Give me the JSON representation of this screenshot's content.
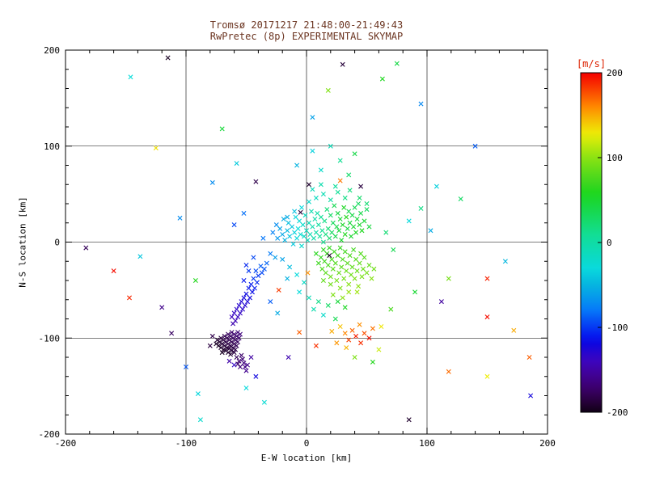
{
  "chart_data": {
    "type": "scatter",
    "title_line1": "Tromsø 20171217 21:48:00-21:49:43",
    "title_line2": "RwPretec (8p) EXPERIMENTAL SKYMAP",
    "xlabel": "E-W location [km]",
    "ylabel": "N-S location [km]",
    "xlim": [
      -200,
      200
    ],
    "ylim": [
      -200,
      200
    ],
    "xticks": [
      -200,
      -100,
      0,
      100,
      200
    ],
    "yticks": [
      -200,
      -100,
      0,
      100,
      200
    ],
    "minor_tick_step": 20,
    "grid": true,
    "marker": "x",
    "title_color": "#6b3420",
    "axis_color": "#000000",
    "colorbar": {
      "label": "[m/s]",
      "label_color": "#dd2200",
      "min": -200,
      "max": 200,
      "ticks": [
        200,
        100,
        0,
        -100,
        -200
      ]
    },
    "colormap": [
      [
        -200,
        285,
        100,
        4
      ],
      [
        -170,
        272,
        100,
        22
      ],
      [
        -140,
        258,
        95,
        38
      ],
      [
        -110,
        235,
        95,
        48
      ],
      [
        -80,
        212,
        95,
        50
      ],
      [
        -50,
        192,
        95,
        45
      ],
      [
        -20,
        175,
        90,
        45
      ],
      [
        10,
        158,
        85,
        47
      ],
      [
        40,
        135,
        80,
        47
      ],
      [
        70,
        110,
        75,
        48
      ],
      [
        100,
        85,
        85,
        48
      ],
      [
        130,
        58,
        95,
        48
      ],
      [
        160,
        32,
        100,
        50
      ],
      [
        200,
        0,
        100,
        48
      ]
    ],
    "points": [
      [
        -28,
        10,
        -75
      ],
      [
        -25,
        18,
        -70
      ],
      [
        -24,
        4,
        -65
      ],
      [
        -22,
        14,
        -60
      ],
      [
        -20,
        8,
        -58
      ],
      [
        -19,
        24,
        -55
      ],
      [
        -18,
        2,
        -52
      ],
      [
        -16,
        12,
        -48
      ],
      [
        -15,
        20,
        -45
      ],
      [
        -14,
        6,
        -42
      ],
      [
        -12,
        16,
        -40
      ],
      [
        -11,
        -2,
        -38
      ],
      [
        -10,
        10,
        -35
      ],
      [
        -9,
        26,
        -32
      ],
      [
        -8,
        4,
        -30
      ],
      [
        -7,
        14,
        -28
      ],
      [
        -6,
        22,
        -26
      ],
      [
        -5,
        8,
        -24
      ],
      [
        -4,
        -4,
        -22
      ],
      [
        -3,
        18,
        -20
      ],
      [
        -2,
        6,
        -18
      ],
      [
        -1,
        28,
        -16
      ],
      [
        0,
        12,
        -14
      ],
      [
        1,
        2,
        -12
      ],
      [
        2,
        20,
        -10
      ],
      [
        3,
        8,
        -8
      ],
      [
        4,
        32,
        -6
      ],
      [
        5,
        16,
        -5
      ],
      [
        6,
        4,
        -4
      ],
      [
        7,
        24,
        -3
      ],
      [
        8,
        10,
        -2
      ],
      [
        9,
        30,
        -1
      ],
      [
        10,
        18,
        2
      ],
      [
        11,
        6,
        5
      ],
      [
        12,
        26,
        8
      ],
      [
        13,
        12,
        10
      ],
      [
        14,
        0,
        12
      ],
      [
        15,
        22,
        15
      ],
      [
        16,
        8,
        18
      ],
      [
        17,
        34,
        20
      ],
      [
        18,
        14,
        22
      ],
      [
        19,
        4,
        25
      ],
      [
        20,
        28,
        28
      ],
      [
        21,
        10,
        30
      ],
      [
        22,
        20,
        32
      ],
      [
        23,
        38,
        35
      ],
      [
        24,
        6,
        38
      ],
      [
        25,
        16,
        40
      ],
      [
        26,
        30,
        42
      ],
      [
        27,
        12,
        45
      ],
      [
        28,
        24,
        48
      ],
      [
        29,
        2,
        50
      ],
      [
        30,
        18,
        52
      ],
      [
        31,
        36,
        55
      ],
      [
        32,
        8,
        58
      ],
      [
        33,
        26,
        60
      ],
      [
        34,
        14,
        42
      ],
      [
        35,
        32,
        38
      ],
      [
        36,
        20,
        45
      ],
      [
        37,
        6,
        50
      ],
      [
        38,
        28,
        40
      ],
      [
        39,
        16,
        48
      ],
      [
        40,
        36,
        35
      ],
      [
        41,
        10,
        55
      ],
      [
        42,
        24,
        45
      ],
      [
        43,
        40,
        30
      ],
      [
        44,
        18,
        50
      ],
      [
        45,
        30,
        40
      ],
      [
        46,
        12,
        58
      ],
      [
        48,
        22,
        48
      ],
      [
        50,
        34,
        30
      ],
      [
        52,
        16,
        44
      ],
      [
        8,
        -12,
        62
      ],
      [
        10,
        -22,
        70
      ],
      [
        12,
        -16,
        66
      ],
      [
        13,
        -28,
        78
      ],
      [
        14,
        -8,
        64
      ],
      [
        15,
        -20,
        72
      ],
      [
        16,
        -32,
        82
      ],
      [
        17,
        -12,
        68
      ],
      [
        18,
        -24,
        76
      ],
      [
        19,
        -6,
        66
      ],
      [
        20,
        -36,
        88
      ],
      [
        21,
        -18,
        74
      ],
      [
        22,
        -28,
        82
      ],
      [
        23,
        -10,
        70
      ],
      [
        24,
        -22,
        78
      ],
      [
        25,
        -40,
        92
      ],
      [
        26,
        -14,
        72
      ],
      [
        27,
        -32,
        86
      ],
      [
        28,
        -6,
        68
      ],
      [
        29,
        -26,
        82
      ],
      [
        30,
        -18,
        76
      ],
      [
        31,
        -38,
        92
      ],
      [
        32,
        -10,
        72
      ],
      [
        33,
        -30,
        88
      ],
      [
        34,
        -22,
        80
      ],
      [
        35,
        -44,
        98
      ],
      [
        36,
        -14,
        76
      ],
      [
        37,
        -34,
        90
      ],
      [
        38,
        -26,
        84
      ],
      [
        39,
        -8,
        72
      ],
      [
        40,
        -38,
        95
      ],
      [
        41,
        -18,
        80
      ],
      [
        42,
        -30,
        88
      ],
      [
        43,
        -46,
        102
      ],
      [
        44,
        -22,
        84
      ],
      [
        45,
        -12,
        78
      ],
      [
        46,
        -36,
        94
      ],
      [
        47,
        -28,
        88
      ],
      [
        48,
        -16,
        80
      ],
      [
        50,
        -32,
        92
      ],
      [
        52,
        -24,
        86
      ],
      [
        54,
        -38,
        98
      ],
      [
        56,
        -28,
        90
      ],
      [
        35,
        -52,
        104
      ],
      [
        28,
        -48,
        96
      ],
      [
        20,
        -44,
        90
      ],
      [
        14,
        -40,
        84
      ],
      [
        42,
        -52,
        106
      ],
      [
        30,
        -58,
        100
      ],
      [
        22,
        -55,
        95
      ],
      [
        -4,
        36,
        -30
      ],
      [
        2,
        42,
        -20
      ],
      [
        8,
        46,
        -15
      ],
      [
        14,
        50,
        -8
      ],
      [
        20,
        44,
        0
      ],
      [
        26,
        52,
        8
      ],
      [
        32,
        46,
        15
      ],
      [
        -10,
        32,
        -45
      ],
      [
        -16,
        26,
        -55
      ],
      [
        5,
        55,
        -12
      ],
      [
        12,
        60,
        -5
      ],
      [
        24,
        58,
        5
      ],
      [
        36,
        54,
        18
      ],
      [
        44,
        46,
        25
      ],
      [
        50,
        40,
        22
      ],
      [
        -20,
        -18,
        -60
      ],
      [
        -14,
        -26,
        -45
      ],
      [
        -8,
        -34,
        -30
      ],
      [
        -2,
        -42,
        -18
      ],
      [
        -16,
        -38,
        -52
      ],
      [
        -6,
        -52,
        -28
      ],
      [
        2,
        -58,
        -10
      ],
      [
        10,
        -62,
        15
      ],
      [
        18,
        -66,
        28
      ],
      [
        26,
        -62,
        45
      ],
      [
        6,
        -70,
        -5
      ],
      [
        32,
        -68,
        55
      ],
      [
        14,
        -76,
        -20
      ],
      [
        24,
        -80,
        35
      ],
      [
        -23,
        -50,
        182
      ],
      [
        1,
        -32,
        158
      ],
      [
        28,
        64,
        165
      ],
      [
        -6,
        -94,
        172
      ],
      [
        2,
        60,
        -192
      ],
      [
        45,
        58,
        -186
      ],
      [
        -42,
        63,
        -182
      ],
      [
        19,
        -14,
        -195
      ],
      [
        -5,
        31,
        -188
      ],
      [
        12,
        75,
        -20
      ],
      [
        28,
        85,
        10
      ],
      [
        5,
        95,
        -35
      ],
      [
        35,
        70,
        25
      ],
      [
        20,
        100,
        -10
      ],
      [
        -8,
        80,
        -50
      ],
      [
        40,
        92,
        40
      ],
      [
        66,
        10,
        22
      ],
      [
        72,
        -8,
        36
      ],
      [
        85,
        22,
        -30
      ],
      [
        95,
        35,
        15
      ],
      [
        108,
        58,
        -35
      ],
      [
        -33,
        -22,
        -85
      ],
      [
        -35,
        -28,
        -90
      ],
      [
        -37,
        -32,
        -95
      ],
      [
        -38,
        -25,
        -88
      ],
      [
        -40,
        -35,
        -100
      ],
      [
        -41,
        -42,
        -105
      ],
      [
        -42,
        -30,
        -95
      ],
      [
        -43,
        -48,
        -110
      ],
      [
        -44,
        -38,
        -100
      ],
      [
        -45,
        -52,
        -115
      ],
      [
        -46,
        -44,
        -108
      ],
      [
        -47,
        -58,
        -120
      ],
      [
        -48,
        -48,
        -112
      ],
      [
        -49,
        -62,
        -125
      ],
      [
        -50,
        -54,
        -118
      ],
      [
        -51,
        -66,
        -128
      ],
      [
        -52,
        -58,
        -122
      ],
      [
        -53,
        -70,
        -132
      ],
      [
        -54,
        -62,
        -126
      ],
      [
        -55,
        -74,
        -135
      ],
      [
        -56,
        -66,
        -130
      ],
      [
        -57,
        -78,
        -138
      ],
      [
        -58,
        -70,
        -133
      ],
      [
        -59,
        -82,
        -142
      ],
      [
        -60,
        -74,
        -136
      ],
      [
        -61,
        -85,
        -145
      ],
      [
        -62,
        -78,
        -140
      ],
      [
        -48,
        -30,
        -100
      ],
      [
        -52,
        -40,
        -110
      ],
      [
        -30,
        -12,
        -78
      ],
      [
        -26,
        -16,
        -62
      ],
      [
        -36,
        4,
        -80
      ],
      [
        -44,
        -16,
        -95
      ],
      [
        -50,
        -24,
        -105
      ],
      [
        -52,
        30,
        -82
      ],
      [
        -60,
        18,
        -95
      ],
      [
        -30,
        -62,
        -88
      ],
      [
        -24,
        -74,
        -55
      ],
      [
        -55,
        -96,
        -165
      ],
      [
        -56,
        -100,
        -170
      ],
      [
        -57,
        -94,
        -168
      ],
      [
        -57,
        -104,
        -175
      ],
      [
        -58,
        -98,
        -172
      ],
      [
        -58,
        -108,
        -178
      ],
      [
        -59,
        -102,
        -175
      ],
      [
        -59,
        -112,
        -182
      ],
      [
        -60,
        -96,
        -170
      ],
      [
        -60,
        -106,
        -180
      ],
      [
        -60,
        -115,
        -185
      ],
      [
        -61,
        -100,
        -176
      ],
      [
        -61,
        -110,
        -183
      ],
      [
        -62,
        -94,
        -172
      ],
      [
        -62,
        -104,
        -180
      ],
      [
        -62,
        -113,
        -188
      ],
      [
        -63,
        -98,
        -175
      ],
      [
        -63,
        -108,
        -184
      ],
      [
        -63,
        -117,
        -190
      ],
      [
        -64,
        -102,
        -180
      ],
      [
        -64,
        -111,
        -187
      ],
      [
        -65,
        -96,
        -176
      ],
      [
        -65,
        -106,
        -184
      ],
      [
        -65,
        -115,
        -192
      ],
      [
        -66,
        -100,
        -180
      ],
      [
        -66,
        -110,
        -188
      ],
      [
        -67,
        -104,
        -184
      ],
      [
        -67,
        -113,
        -192
      ],
      [
        -68,
        -98,
        -180
      ],
      [
        -68,
        -108,
        -188
      ],
      [
        -69,
        -102,
        -185
      ],
      [
        -69,
        -112,
        -192
      ],
      [
        -70,
        -106,
        -188
      ],
      [
        -70,
        -115,
        -195
      ],
      [
        -71,
        -100,
        -185
      ],
      [
        -71,
        -110,
        -192
      ],
      [
        -72,
        -104,
        -190
      ],
      [
        -73,
        -108,
        -194
      ],
      [
        -74,
        -102,
        -190
      ],
      [
        -75,
        -106,
        -195
      ],
      [
        -54,
        -118,
        -172
      ],
      [
        -53,
        -122,
        -168
      ],
      [
        -52,
        -126,
        -165
      ],
      [
        -51,
        -130,
        -162
      ],
      [
        -50,
        -134,
        -158
      ],
      [
        -49,
        -128,
        -160
      ],
      [
        -56,
        -124,
        -170
      ],
      [
        -58,
        -120,
        -178
      ],
      [
        -55,
        -130,
        -166
      ],
      [
        -57,
        -127,
        -172
      ],
      [
        -78,
        -98,
        -182
      ],
      [
        -80,
        -108,
        -186
      ],
      [
        -60,
        -128,
        -135
      ],
      [
        -64,
        -124,
        -148
      ],
      [
        -46,
        -120,
        -150
      ],
      [
        28,
        -88,
        142
      ],
      [
        32,
        -95,
        160
      ],
      [
        35,
        -102,
        180
      ],
      [
        38,
        -92,
        170
      ],
      [
        41,
        -98,
        190
      ],
      [
        45,
        -105,
        186
      ],
      [
        48,
        -95,
        176
      ],
      [
        52,
        -100,
        195
      ],
      [
        21,
        -93,
        150
      ],
      [
        25,
        -105,
        156
      ],
      [
        55,
        -90,
        166
      ],
      [
        33,
        -110,
        146
      ],
      [
        44,
        -86,
        158
      ],
      [
        -115,
        192,
        -196
      ],
      [
        30,
        185,
        -188
      ],
      [
        63,
        170,
        58
      ],
      [
        -146,
        172,
        -28
      ],
      [
        18,
        158,
        96
      ],
      [
        95,
        144,
        -72
      ],
      [
        75,
        186,
        40
      ],
      [
        -160,
        -30,
        196
      ],
      [
        -147,
        -58,
        188
      ],
      [
        -183,
        -6,
        -178
      ],
      [
        -120,
        -68,
        -160
      ],
      [
        -138,
        -15,
        -40
      ],
      [
        -105,
        25,
        -70
      ],
      [
        -92,
        -40,
        60
      ],
      [
        112,
        -62,
        -152
      ],
      [
        150,
        -78,
        196
      ],
      [
        165,
        -20,
        -48
      ],
      [
        118,
        -38,
        92
      ],
      [
        185,
        -120,
        172
      ],
      [
        150,
        -140,
        128
      ],
      [
        186,
        -160,
        -122
      ],
      [
        150,
        -38,
        190
      ],
      [
        -90,
        -158,
        -32
      ],
      [
        -88,
        -185,
        -22
      ],
      [
        85,
        -185,
        -192
      ],
      [
        118,
        -135,
        168
      ],
      [
        55,
        -125,
        60
      ],
      [
        -35,
        -167,
        -25
      ],
      [
        -50,
        -152,
        -30
      ],
      [
        140,
        100,
        -88
      ],
      [
        -70,
        118,
        45
      ],
      [
        5,
        130,
        -60
      ],
      [
        -125,
        98,
        132
      ],
      [
        60,
        -112,
        118
      ],
      [
        8,
        -108,
        185
      ],
      [
        -15,
        -120,
        -145
      ],
      [
        70,
        -70,
        75
      ],
      [
        90,
        -52,
        48
      ],
      [
        62,
        -88,
        130
      ],
      [
        -100,
        -130,
        -90
      ],
      [
        -112,
        -95,
        -175
      ],
      [
        103,
        12,
        -55
      ],
      [
        128,
        45,
        28
      ],
      [
        -78,
        62,
        -70
      ],
      [
        172,
        -92,
        150
      ],
      [
        -58,
        82,
        -38
      ],
      [
        40,
        -120,
        95
      ],
      [
        -42,
        -140,
        -120
      ]
    ]
  }
}
